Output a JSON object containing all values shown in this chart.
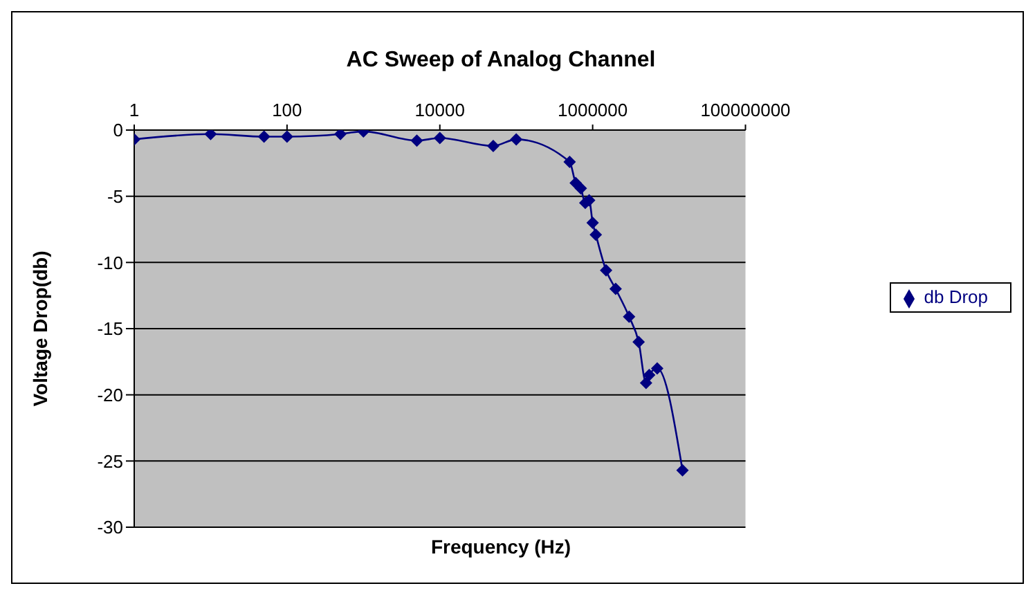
{
  "chart_data": {
    "type": "line",
    "title": "AC Sweep of Analog Channel",
    "xlabel": "Frequency (Hz)",
    "ylabel": "Voltage Drop(db)",
    "x": [
      1,
      10,
      50,
      100,
      500,
      1000,
      5000,
      10000,
      50000,
      100000,
      500000,
      600000,
      700000,
      800000,
      900000,
      1000000,
      1100000,
      1500000,
      2000000,
      3000000,
      4000000,
      5000000,
      5500000,
      7000000,
      15000000
    ],
    "series": [
      {
        "name": "db Drop",
        "color": "#000080",
        "values": [
          -0.7,
          -0.3,
          -0.5,
          -0.5,
          -0.3,
          -0.1,
          -0.8,
          -0.6,
          -1.2,
          -0.7,
          -2.4,
          -4.0,
          -4.4,
          -5.5,
          -5.3,
          -7.0,
          -7.9,
          -10.6,
          -12.0,
          -14.1,
          -16.0,
          -19.1,
          -18.5,
          -18.0,
          -25.7
        ]
      }
    ],
    "log": "x",
    "xlim": [
      1,
      100000000
    ],
    "xticks": [
      1,
      100,
      10000,
      1000000,
      100000000
    ],
    "ylim": [
      -30,
      0
    ],
    "yticks": [
      -30,
      -25,
      -20,
      -15,
      -10,
      -5,
      0
    ],
    "grid": "y",
    "legend": "right",
    "marker": "diamond",
    "line_style": "solid"
  }
}
